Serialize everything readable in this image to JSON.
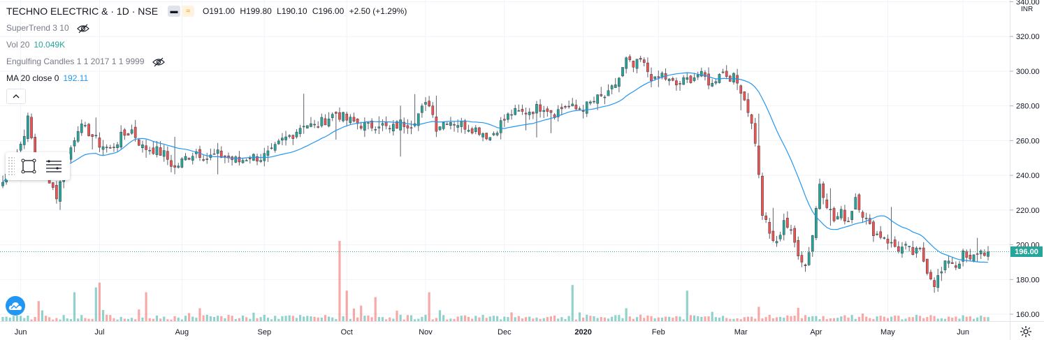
{
  "header": {
    "symbol_title": "TECHNO ELECTRIC & · 1D · NSE",
    "pill1_glyph": "▬",
    "pill2_glyph": "≈",
    "open": "O191.00",
    "high": "H199.80",
    "low": "L190.10",
    "close": "C196.00",
    "change": "+2.50 (+1.29%)"
  },
  "indicators": {
    "supertrend": "SuperTrend 3 10",
    "vol_label": "Vol 20",
    "vol_value": "10.049K",
    "engulfing": "Engulfing Candles 1 1 2017 1 1 9999",
    "ma_label": "MA 20 close 0",
    "ma_value": "192.11"
  },
  "price_axis": {
    "currency": "INR",
    "last_price_label": "196.00"
  },
  "colors": {
    "up": "#26a69a",
    "down": "#ef5350",
    "ma": "#2196f3",
    "grid": "#f0f3fa",
    "axis_text": "#131722"
  },
  "icons": {
    "eye_off": "eye-off-icon",
    "collapse": "chevron-up-icon",
    "rect_tool": "rectangle-tool-icon",
    "settings_lines": "settings-lines-icon",
    "logo": "tradingview-cloud-icon",
    "settings": "gear-icon"
  },
  "chart_data": {
    "type": "candlestick",
    "ylim": [
      156,
      341
    ],
    "y_ticks": [
      160,
      180,
      200,
      220,
      240,
      260,
      280,
      300,
      320,
      340
    ],
    "y_tick_labels": [
      "160.00",
      "180.00",
      "200.00",
      "220.00",
      "240.00",
      "260.00",
      "280.00",
      "300.00",
      "320.00",
      "340.00"
    ],
    "x_tick_labels": [
      "Jun",
      "Jul",
      "Aug",
      "Sep",
      "Oct",
      "Nov",
      "Dec",
      "2020",
      "Feb",
      "Mar",
      "Apr",
      "May",
      "Jun"
    ],
    "x_tick_index": [
      5,
      27,
      50,
      73,
      96,
      118,
      140,
      162,
      183,
      206,
      227,
      247,
      268
    ],
    "last_price": 196,
    "ma_period": 20,
    "ma_last": 192.11,
    "vol_last": "10.049K",
    "keypoints": [
      [
        0,
        236
      ],
      [
        5,
        258
      ],
      [
        7,
        272
      ],
      [
        9,
        250
      ],
      [
        12,
        243
      ],
      [
        15,
        228
      ],
      [
        18,
        250
      ],
      [
        21,
        268
      ],
      [
        24,
        265
      ],
      [
        27,
        258
      ],
      [
        30,
        255
      ],
      [
        33,
        262
      ],
      [
        36,
        266
      ],
      [
        39,
        256
      ],
      [
        42,
        255
      ],
      [
        45,
        252
      ],
      [
        48,
        244
      ],
      [
        51,
        250
      ],
      [
        54,
        254
      ],
      [
        57,
        250
      ],
      [
        60,
        252
      ],
      [
        63,
        250
      ],
      [
        66,
        248
      ],
      [
        69,
        251
      ],
      [
        72,
        250
      ],
      [
        75,
        253
      ],
      [
        78,
        260
      ],
      [
        81,
        264
      ],
      [
        84,
        270
      ],
      [
        87,
        268
      ],
      [
        90,
        272
      ],
      [
        93,
        276
      ],
      [
        96,
        272
      ],
      [
        99,
        270
      ],
      [
        102,
        268
      ],
      [
        105,
        270
      ],
      [
        108,
        266
      ],
      [
        111,
        270
      ],
      [
        114,
        270
      ],
      [
        117,
        278
      ],
      [
        119,
        282
      ],
      [
        121,
        268
      ],
      [
        124,
        272
      ],
      [
        127,
        270
      ],
      [
        130,
        268
      ],
      [
        133,
        266
      ],
      [
        136,
        262
      ],
      [
        139,
        270
      ],
      [
        142,
        276
      ],
      [
        145,
        276
      ],
      [
        148,
        278
      ],
      [
        151,
        280
      ],
      [
        154,
        276
      ],
      [
        157,
        280
      ],
      [
        160,
        278
      ],
      [
        163,
        280
      ],
      [
        166,
        284
      ],
      [
        169,
        286
      ],
      [
        172,
        296
      ],
      [
        174,
        306
      ],
      [
        176,
        302
      ],
      [
        178,
        306
      ],
      [
        180,
        300
      ],
      [
        182,
        294
      ],
      [
        184,
        298
      ],
      [
        186,
        294
      ],
      [
        188,
        292
      ],
      [
        190,
        294
      ],
      [
        192,
        296
      ],
      [
        194,
        298
      ],
      [
        196,
        296
      ],
      [
        198,
        292
      ],
      [
        200,
        300
      ],
      [
        202,
        298
      ],
      [
        204,
        296
      ],
      [
        206,
        290
      ],
      [
        208,
        278
      ],
      [
        210,
        260
      ],
      [
        212,
        218
      ],
      [
        214,
        206
      ],
      [
        216,
        200
      ],
      [
        218,
        215
      ],
      [
        220,
        206
      ],
      [
        222,
        196
      ],
      [
        224,
        188
      ],
      [
        226,
        206
      ],
      [
        228,
        236
      ],
      [
        230,
        224
      ],
      [
        232,
        214
      ],
      [
        234,
        218
      ],
      [
        236,
        214
      ],
      [
        238,
        228
      ],
      [
        240,
        218
      ],
      [
        242,
        210
      ],
      [
        244,
        206
      ],
      [
        246,
        205
      ],
      [
        248,
        200
      ],
      [
        250,
        198
      ],
      [
        252,
        198
      ],
      [
        254,
        195
      ],
      [
        256,
        196
      ],
      [
        258,
        186
      ],
      [
        260,
        178
      ],
      [
        262,
        184
      ],
      [
        264,
        192
      ],
      [
        266,
        188
      ],
      [
        268,
        194
      ],
      [
        270,
        190
      ],
      [
        272,
        196
      ],
      [
        275,
        196
      ]
    ],
    "volume_spikes": [
      [
        94,
        1.0
      ],
      [
        96,
        0.38
      ],
      [
        119,
        0.36
      ],
      [
        26,
        0.42
      ],
      [
        27,
        0.48
      ],
      [
        20,
        0.36
      ],
      [
        40,
        0.36
      ],
      [
        159,
        0.45
      ],
      [
        191,
        0.38
      ],
      [
        10,
        0.25
      ],
      [
        104,
        0.3
      ]
    ]
  }
}
